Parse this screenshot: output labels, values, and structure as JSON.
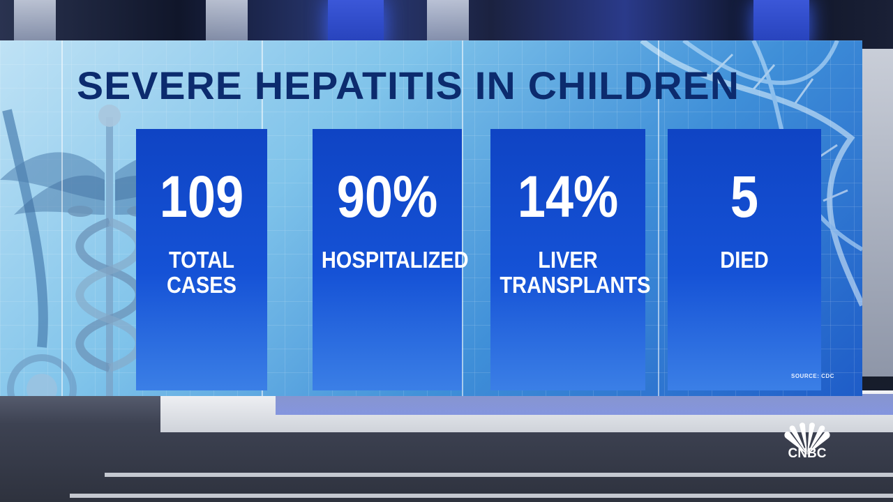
{
  "graphic": {
    "headline": "SEVERE HEPATITIS IN CHILDREN",
    "source": "SOURCE: CDC"
  },
  "stats": [
    {
      "value": "109",
      "label": "TOTAL\nCASES"
    },
    {
      "value": "90%",
      "label": "HOSPITALIZED"
    },
    {
      "value": "14%",
      "label": "LIVER\nTRANSPLANTS"
    },
    {
      "value": "5",
      "label": "DIED"
    }
  ],
  "network": {
    "logo_text": "CNBC",
    "logo_icon": "peacock-icon"
  },
  "decor": {
    "left_art": "caduceus-icon",
    "right_art": "dna-helix-icon"
  },
  "colors": {
    "headline": "#0c2b6e",
    "panel": "#1552d6",
    "wall": "#7fc3ea"
  }
}
